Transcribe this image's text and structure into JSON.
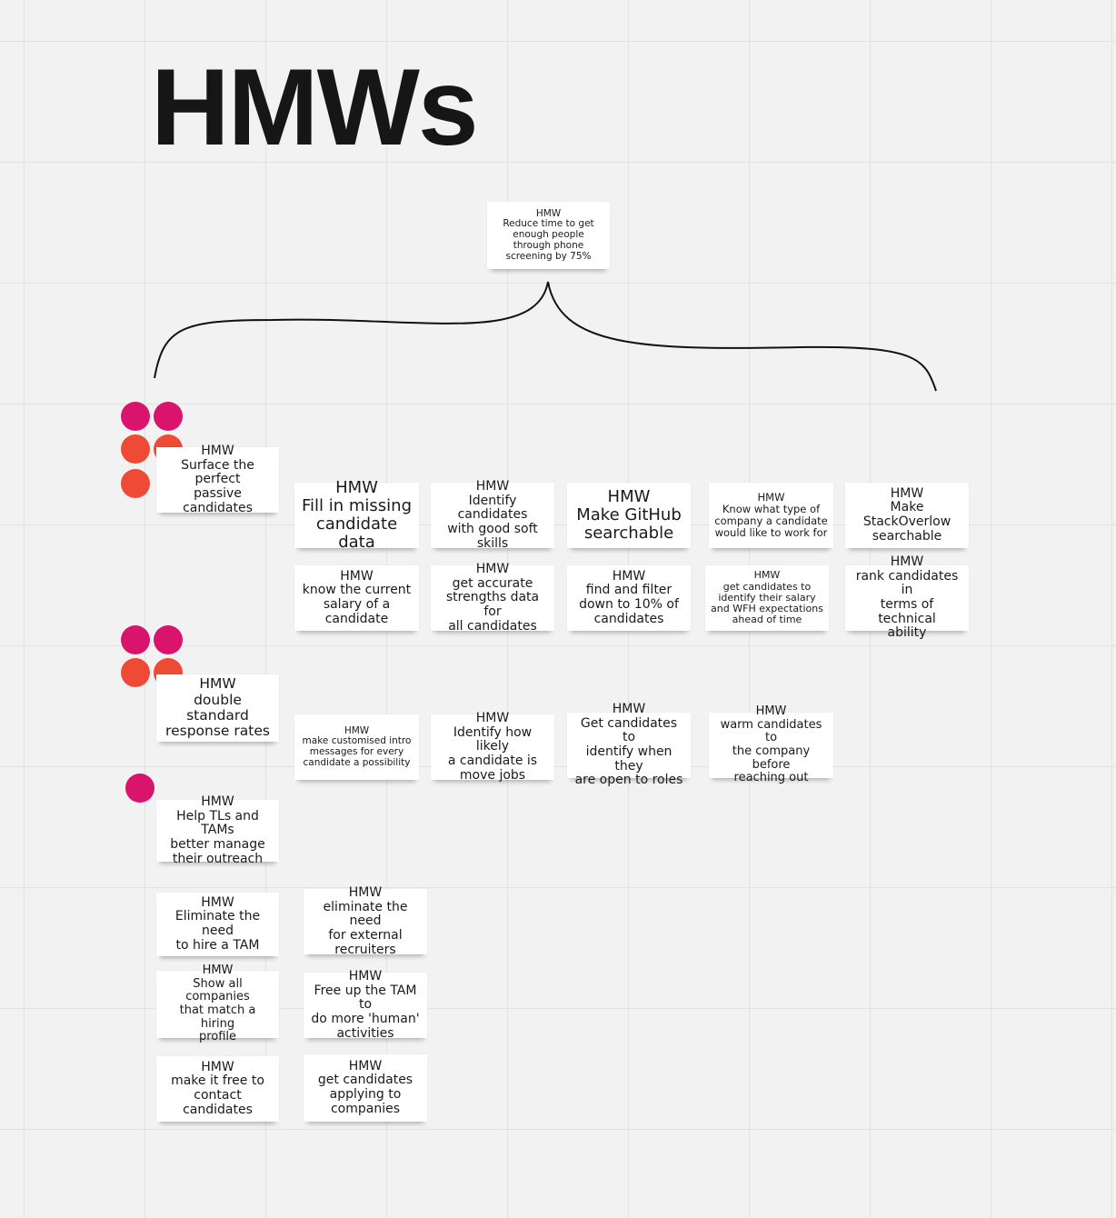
{
  "title": "HMWs",
  "colors": {
    "magenta_dot": "#d9146c",
    "orange_dot": "#ee4a36",
    "note": "#ffffff"
  },
  "root_note": "HMW\nReduce time to get\nenough people\nthrough phone\nscreening by 75%",
  "left_notes": [
    "HMW\nSurface the perfect\npassive candidates",
    "HMW\ndouble standard\nresponse rates",
    "HMW\nHelp TLs and TAMs\nbetter manage\ntheir outreach",
    "HMW\nEliminate the need\nto hire a TAM",
    "HMW\nShow all companies\nthat match a hiring\nprofile",
    "HMW\nmake it free to\ncontact candidates"
  ],
  "grid_row1": [
    "HMW\nFill in missing\ncandidate data",
    "HMW\nIdentify candidates\nwith good soft\nskills",
    "HMW\nMake GitHub\nsearchable",
    "HMW\nKnow what type of\ncompany a candidate\nwould like to work for",
    "HMW\nMake\nStackOverlow\nsearchable"
  ],
  "grid_row2": [
    "HMW\nknow the current\nsalary of a\ncandidate",
    "HMW\nget accurate\nstrengths data for\nall candidates",
    "HMW\nfind and filter\ndown to 10% of\ncandidates",
    "HMW\nget candidates to\nidentify their salary\nand WFH expectations\nahead of time",
    "HMW\nrank candidates in\nterms of technical\nability"
  ],
  "grid_row3": [
    "HMW\nmake customised intro\nmessages for every\ncandidate a possibility",
    "HMW\nIdentify how likely\na candidate is\nmove jobs",
    "HMW\nGet candidates to\nidentify when they\nare open to roles",
    "HMW\nwarm candidates to\nthe company before\nreaching out"
  ],
  "col2_notes": [
    "HMW\neliminate the need\nfor external\nrecruiters",
    "HMW\nFree up the TAM to\ndo more 'human'\nactivities",
    "HMW\nget candidates\napplying to\ncompanies"
  ]
}
